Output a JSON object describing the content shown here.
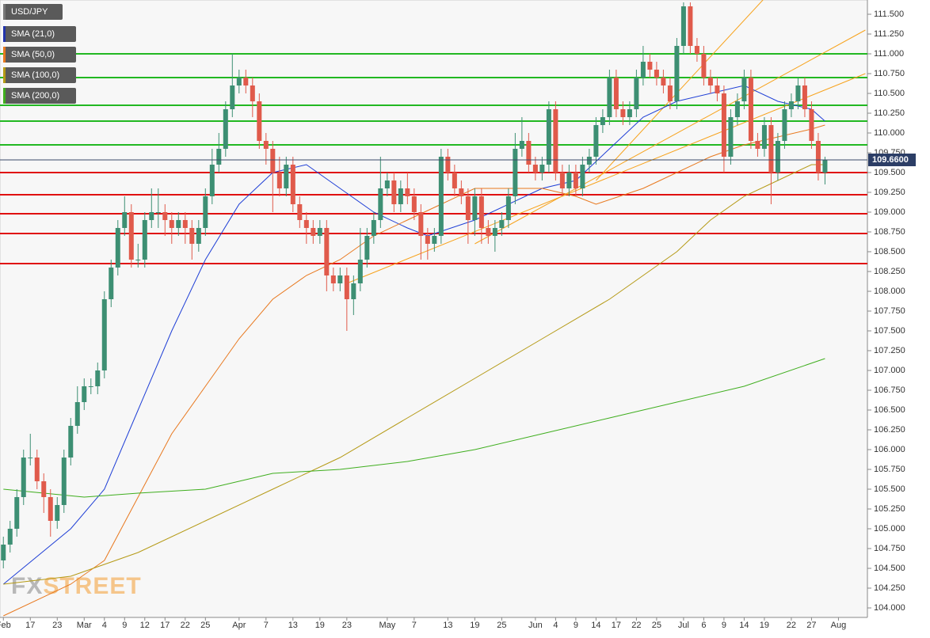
{
  "chart_data": {
    "type": "candlestick",
    "categories": [
      "Feb",
      null,
      null,
      null,
      "17",
      null,
      null,
      null,
      "23",
      null,
      null,
      null,
      "Mar",
      null,
      null,
      "4",
      null,
      null,
      "9",
      null,
      null,
      "12",
      null,
      null,
      "17",
      null,
      null,
      "22",
      null,
      null,
      "25",
      null,
      null,
      null,
      null,
      "Apr",
      null,
      null,
      null,
      "7",
      null,
      null,
      null,
      "13",
      null,
      null,
      null,
      "19",
      null,
      null,
      null,
      "23",
      null,
      null,
      null,
      null,
      null,
      "May",
      null,
      null,
      null,
      "7",
      null,
      null,
      null,
      null,
      "13",
      null,
      null,
      null,
      "19",
      null,
      null,
      null,
      "25",
      null,
      null,
      null,
      null,
      "Jun",
      null,
      null,
      "4",
      null,
      null,
      "9",
      null,
      null,
      "14",
      null,
      null,
      "17",
      null,
      null,
      "22",
      null,
      null,
      "25",
      null,
      null,
      null,
      "Jul",
      null,
      null,
      "6",
      null,
      null,
      "9",
      null,
      null,
      "14",
      null,
      null,
      "19",
      null,
      null,
      null,
      "22",
      null,
      null,
      "27",
      null,
      null,
      null,
      "Aug"
    ],
    "candles": {
      "name": "USD/JPY",
      "up_color": "#3d8f73",
      "down_color": "#e05a4b",
      "open": [
        104.6,
        104.8,
        105.0,
        105.4,
        105.9,
        105.9,
        105.6,
        105.4,
        105.1,
        105.3,
        105.9,
        106.3,
        106.6,
        106.8,
        106.8,
        107.0,
        107.9,
        108.3,
        108.8,
        109.0,
        108.4,
        108.4,
        108.9,
        109.0,
        109.0,
        108.9,
        108.8,
        108.9,
        108.8,
        108.6,
        108.8,
        109.2,
        109.6,
        109.8,
        110.3,
        110.6,
        110.7,
        110.6,
        110.4,
        109.9,
        109.8,
        109.5,
        109.3,
        109.6,
        109.1,
        108.9,
        108.8,
        108.7,
        108.8,
        108.2,
        108.1,
        108.2,
        107.9,
        108.1,
        108.4,
        108.7,
        108.9,
        109.3,
        109.4,
        109.1,
        109.3,
        109.2,
        109.0,
        108.7,
        108.6,
        108.7,
        109.7,
        109.5,
        109.3,
        109.2,
        108.9,
        109.2,
        108.8,
        108.7,
        108.8,
        108.9,
        109.2,
        109.8,
        109.9,
        109.6,
        109.5,
        109.6,
        110.3,
        109.5,
        109.3,
        109.5,
        109.3,
        109.6,
        109.7,
        110.1,
        110.2,
        110.7,
        110.3,
        110.2,
        110.3,
        110.7,
        110.9,
        110.8,
        110.7,
        110.6,
        110.4,
        111.1,
        111.6,
        111.1,
        111.0,
        110.7,
        110.6,
        110.5,
        109.7,
        110.2,
        110.4,
        110.7,
        109.9,
        109.8,
        110.1,
        109.5,
        109.9,
        110.3,
        110.4,
        110.6,
        110.3,
        109.9,
        109.5,
        null,
        null
      ],
      "high": [
        104.9,
        105.1,
        105.5,
        106.0,
        106.2,
        106.0,
        105.7,
        105.5,
        105.4,
        106.0,
        106.4,
        106.8,
        106.9,
        106.9,
        107.1,
        108.0,
        108.4,
        108.9,
        109.2,
        109.1,
        108.6,
        109.0,
        109.3,
        109.3,
        109.1,
        109.0,
        109.0,
        109.0,
        108.9,
        108.9,
        109.3,
        109.8,
        110.0,
        110.4,
        111.0,
        110.8,
        110.8,
        110.7,
        110.5,
        110.0,
        109.9,
        109.7,
        109.7,
        109.7,
        109.2,
        109.0,
        108.9,
        108.9,
        108.9,
        108.3,
        108.3,
        108.3,
        108.2,
        108.8,
        108.8,
        109.0,
        109.7,
        109.5,
        109.5,
        109.4,
        109.5,
        109.3,
        109.1,
        108.8,
        108.8,
        109.8,
        109.8,
        109.6,
        109.4,
        109.3,
        109.3,
        109.3,
        108.9,
        108.9,
        109.0,
        109.3,
        110.0,
        110.2,
        110.0,
        109.7,
        109.7,
        110.4,
        110.4,
        109.6,
        109.6,
        109.6,
        109.7,
        109.8,
        110.2,
        110.3,
        110.8,
        110.8,
        110.4,
        110.4,
        110.8,
        111.1,
        111.0,
        110.9,
        110.8,
        110.7,
        111.2,
        111.65,
        111.65,
        111.2,
        111.1,
        110.8,
        110.7,
        110.6,
        110.3,
        110.5,
        110.8,
        110.8,
        110.0,
        110.2,
        110.2,
        110.0,
        110.4,
        110.5,
        110.7,
        110.7,
        110.4,
        110.0,
        109.7,
        null,
        null
      ],
      "low": [
        104.5,
        104.7,
        104.9,
        105.3,
        105.8,
        105.5,
        105.2,
        104.9,
        105.0,
        105.2,
        105.8,
        106.2,
        106.5,
        106.7,
        106.7,
        106.9,
        107.8,
        108.2,
        108.7,
        108.3,
        108.3,
        108.3,
        108.8,
        108.8,
        108.7,
        108.6,
        108.7,
        108.6,
        108.4,
        108.5,
        108.7,
        109.1,
        109.5,
        109.7,
        110.2,
        110.5,
        110.5,
        110.2,
        109.8,
        109.6,
        109.0,
        109.2,
        109.2,
        109.0,
        108.8,
        108.6,
        108.6,
        108.6,
        108.0,
        108.0,
        108.0,
        107.5,
        107.7,
        108.0,
        108.3,
        108.6,
        108.8,
        109.2,
        109.0,
        109.0,
        109.1,
        108.9,
        108.4,
        108.4,
        108.5,
        108.6,
        109.4,
        109.2,
        109.1,
        108.6,
        108.7,
        108.6,
        108.6,
        108.5,
        108.7,
        108.8,
        109.1,
        109.7,
        109.5,
        109.4,
        109.4,
        109.5,
        109.4,
        109.2,
        109.2,
        109.2,
        109.2,
        109.5,
        109.6,
        110.0,
        110.1,
        110.2,
        110.1,
        110.1,
        110.2,
        110.6,
        110.7,
        110.6,
        110.5,
        110.3,
        110.3,
        111.0,
        111.0,
        110.9,
        110.6,
        110.5,
        110.4,
        109.5,
        109.6,
        110.1,
        110.3,
        109.8,
        109.7,
        109.7,
        109.1,
        109.4,
        109.8,
        110.2,
        110.3,
        110.2,
        109.8,
        109.4,
        109.35,
        null,
        null
      ],
      "close": [
        104.8,
        105.0,
        105.4,
        105.9,
        105.9,
        105.6,
        105.4,
        105.1,
        105.3,
        105.9,
        106.3,
        106.6,
        106.8,
        106.8,
        107.0,
        107.9,
        108.3,
        108.8,
        109.0,
        108.4,
        108.4,
        108.9,
        109.0,
        109.0,
        108.9,
        108.8,
        108.9,
        108.8,
        108.6,
        108.8,
        109.2,
        109.6,
        109.8,
        110.3,
        110.6,
        110.7,
        110.6,
        110.4,
        109.9,
        109.8,
        109.5,
        109.3,
        109.6,
        109.1,
        108.9,
        108.8,
        108.7,
        108.8,
        108.2,
        108.1,
        108.2,
        107.9,
        108.1,
        108.4,
        108.7,
        108.9,
        109.3,
        109.4,
        109.1,
        109.3,
        109.2,
        109.0,
        108.7,
        108.6,
        108.7,
        109.7,
        109.5,
        109.3,
        109.2,
        108.9,
        109.2,
        108.8,
        108.7,
        108.8,
        108.9,
        109.2,
        109.8,
        109.9,
        109.6,
        109.5,
        109.6,
        110.3,
        109.5,
        109.3,
        109.5,
        109.3,
        109.6,
        109.7,
        110.1,
        110.2,
        110.7,
        110.3,
        110.2,
        110.3,
        110.7,
        110.9,
        110.8,
        110.7,
        110.6,
        110.4,
        111.1,
        111.6,
        111.1,
        111.0,
        110.7,
        110.6,
        110.5,
        109.7,
        110.2,
        110.4,
        110.7,
        109.9,
        109.8,
        110.1,
        109.5,
        109.9,
        110.3,
        110.4,
        110.6,
        110.3,
        109.9,
        109.5,
        109.66,
        null,
        null
      ]
    },
    "series": [
      {
        "name": "SMA (21,0)",
        "color": "#1f3fd6",
        "legend_color": "#2233aa",
        "x": [
          0,
          10,
          15,
          20,
          25,
          30,
          35,
          40,
          45,
          50,
          55,
          60,
          63,
          70,
          75,
          80,
          85,
          90,
          95,
          100,
          105,
          110,
          115,
          120,
          122
        ],
        "values": [
          104.3,
          105.0,
          105.5,
          106.5,
          107.5,
          108.4,
          109.1,
          109.5,
          109.6,
          109.3,
          109.0,
          108.8,
          108.7,
          108.9,
          109.1,
          109.3,
          109.4,
          109.8,
          110.2,
          110.4,
          110.5,
          110.6,
          110.4,
          110.3,
          110.15
        ]
      },
      {
        "name": "SMA (50,0)",
        "color": "#e8781e",
        "legend_color": "#e8781e",
        "x": [
          0,
          10,
          15,
          20,
          25,
          30,
          35,
          40,
          45,
          50,
          55,
          60,
          65,
          70,
          75,
          80,
          85,
          88,
          95,
          100,
          105,
          110,
          115,
          120,
          122
        ],
        "values": [
          103.9,
          104.3,
          104.6,
          105.4,
          106.2,
          106.8,
          107.4,
          107.9,
          108.2,
          108.4,
          108.7,
          108.9,
          109.1,
          109.3,
          109.3,
          109.3,
          109.2,
          109.1,
          109.3,
          109.5,
          109.7,
          109.85,
          109.95,
          110.05,
          110.1
        ]
      },
      {
        "name": "SMA (100,0)",
        "color": "#b59a16",
        "legend_color": "#b59a16",
        "x": [
          0,
          10,
          20,
          30,
          40,
          50,
          60,
          70,
          80,
          90,
          100,
          105,
          110,
          115,
          120,
          122
        ],
        "values": [
          104.3,
          104.4,
          104.7,
          105.1,
          105.5,
          105.9,
          106.4,
          106.9,
          107.4,
          107.9,
          108.5,
          108.9,
          109.2,
          109.4,
          109.6,
          109.6
        ]
      },
      {
        "name": "SMA (200,0)",
        "color": "#3fae1e",
        "legend_color": "#3fae1e",
        "x": [
          0,
          12,
          20,
          30,
          40,
          50,
          60,
          70,
          80,
          90,
          100,
          110,
          122
        ],
        "values": [
          105.5,
          105.4,
          105.45,
          105.5,
          105.7,
          105.75,
          105.85,
          106.0,
          106.2,
          106.4,
          106.6,
          106.8,
          107.15
        ]
      }
    ],
    "trendlines": [
      {
        "color": "#f7a21b",
        "x": [
          51,
          128
        ],
        "values": [
          108.1,
          110.75
        ]
      },
      {
        "color": "#f7a21b",
        "x": [
          70,
          128
        ],
        "values": [
          108.6,
          111.3
        ]
      },
      {
        "color": "#f7a21b",
        "x": [
          88,
          113
        ],
        "values": [
          109.4,
          111.7
        ]
      }
    ],
    "levels": [
      {
        "value": 111.0,
        "color": "#22b822"
      },
      {
        "value": 110.7,
        "color": "#22b822"
      },
      {
        "value": 110.35,
        "color": "#22b822"
      },
      {
        "value": 110.15,
        "color": "#22b822"
      },
      {
        "value": 109.85,
        "color": "#22b822"
      },
      {
        "value": 109.5,
        "color": "#e01010"
      },
      {
        "value": 109.22,
        "color": "#e01010"
      },
      {
        "value": 108.98,
        "color": "#e01010"
      },
      {
        "value": 108.73,
        "color": "#e01010"
      },
      {
        "value": 108.35,
        "color": "#e01010"
      }
    ],
    "last_price": {
      "value": 109.66,
      "label": "109.6600"
    },
    "watermark": [
      "FX",
      "STREET"
    ],
    "xlim": [
      -0.5,
      128.3
    ],
    "ylim": [
      103.88,
      111.68
    ],
    "yticks": [
      {
        "value": 104.0,
        "label": "104.000"
      },
      {
        "value": 104.25,
        "label": "104.250"
      },
      {
        "value": 104.5,
        "label": "104.500"
      },
      {
        "value": 104.75,
        "label": "104.750"
      },
      {
        "value": 105.0,
        "label": "105.000"
      },
      {
        "value": 105.25,
        "label": "105.250"
      },
      {
        "value": 105.5,
        "label": "105.500"
      },
      {
        "value": 105.75,
        "label": "105.750"
      },
      {
        "value": 106.0,
        "label": "106.000"
      },
      {
        "value": 106.25,
        "label": "106.250"
      },
      {
        "value": 106.5,
        "label": "106.500"
      },
      {
        "value": 106.75,
        "label": "106.750"
      },
      {
        "value": 107.0,
        "label": "107.000"
      },
      {
        "value": 107.25,
        "label": "107.250"
      },
      {
        "value": 107.5,
        "label": "107.500"
      },
      {
        "value": 107.75,
        "label": "107.750"
      },
      {
        "value": 108.0,
        "label": "108.000"
      },
      {
        "value": 108.25,
        "label": "108.250"
      },
      {
        "value": 108.5,
        "label": "108.500"
      },
      {
        "value": 108.75,
        "label": "108.750"
      },
      {
        "value": 109.0,
        "label": "109.000"
      },
      {
        "value": 109.25,
        "label": "109.250"
      },
      {
        "value": 109.5,
        "label": "109.500"
      },
      {
        "value": 109.75,
        "label": "109.750"
      },
      {
        "value": 110.0,
        "label": "110.000"
      },
      {
        "value": 110.25,
        "label": "110.250"
      },
      {
        "value": 110.5,
        "label": "110.500"
      },
      {
        "value": 110.75,
        "label": "110.750"
      },
      {
        "value": 111.0,
        "label": "111.000"
      },
      {
        "value": 111.25,
        "label": "111.250"
      },
      {
        "value": 111.5,
        "label": "111.500"
      }
    ]
  }
}
